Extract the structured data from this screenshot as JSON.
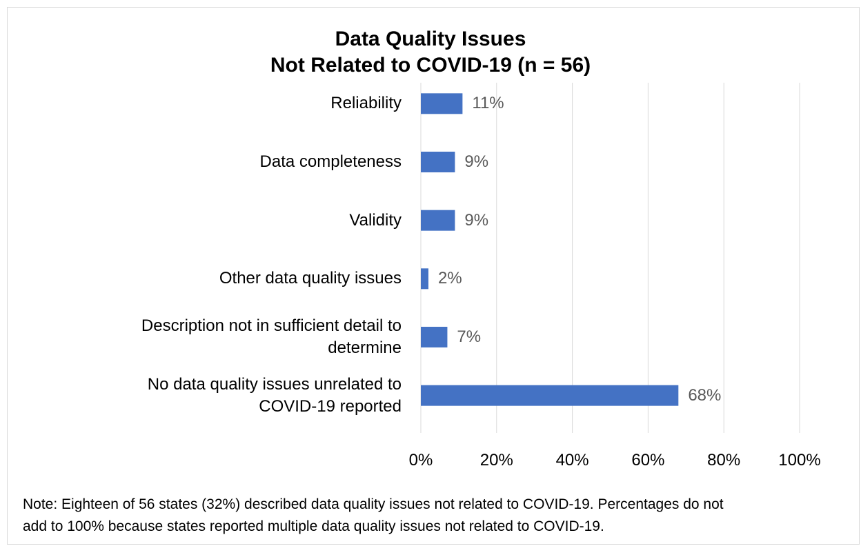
{
  "chart_data": {
    "type": "barh",
    "title": [
      "Data Quality Issues",
      "Not Related to COVID-19 (n = 56)"
    ],
    "categories": [
      "Reliability",
      "Data completeness",
      "Validity",
      "Other data quality issues",
      "Description not in sufficient detail to determine",
      "No data quality issues unrelated to COVID-19 reported"
    ],
    "values": [
      11,
      9,
      9,
      2,
      7,
      68
    ],
    "value_labels": [
      "11%",
      "9%",
      "9%",
      "2%",
      "7%",
      "68%"
    ],
    "color": "#4472c4",
    "xlim": [
      0,
      100
    ],
    "xticks": [
      {
        "value": 0,
        "label": "0%"
      },
      {
        "value": 20,
        "label": "20%"
      },
      {
        "value": 40,
        "label": "40%"
      },
      {
        "value": 60,
        "label": "60%"
      },
      {
        "value": 80,
        "label": "80%"
      },
      {
        "value": 100,
        "label": "100%"
      }
    ],
    "grid": true
  },
  "note": [
    "Note:  Eighteen of 56 states (32%) described data quality issues not related to COVID-19.  Percentages do not",
    "add to 100% because states reported multiple data quality issues not related to COVID-19."
  ]
}
